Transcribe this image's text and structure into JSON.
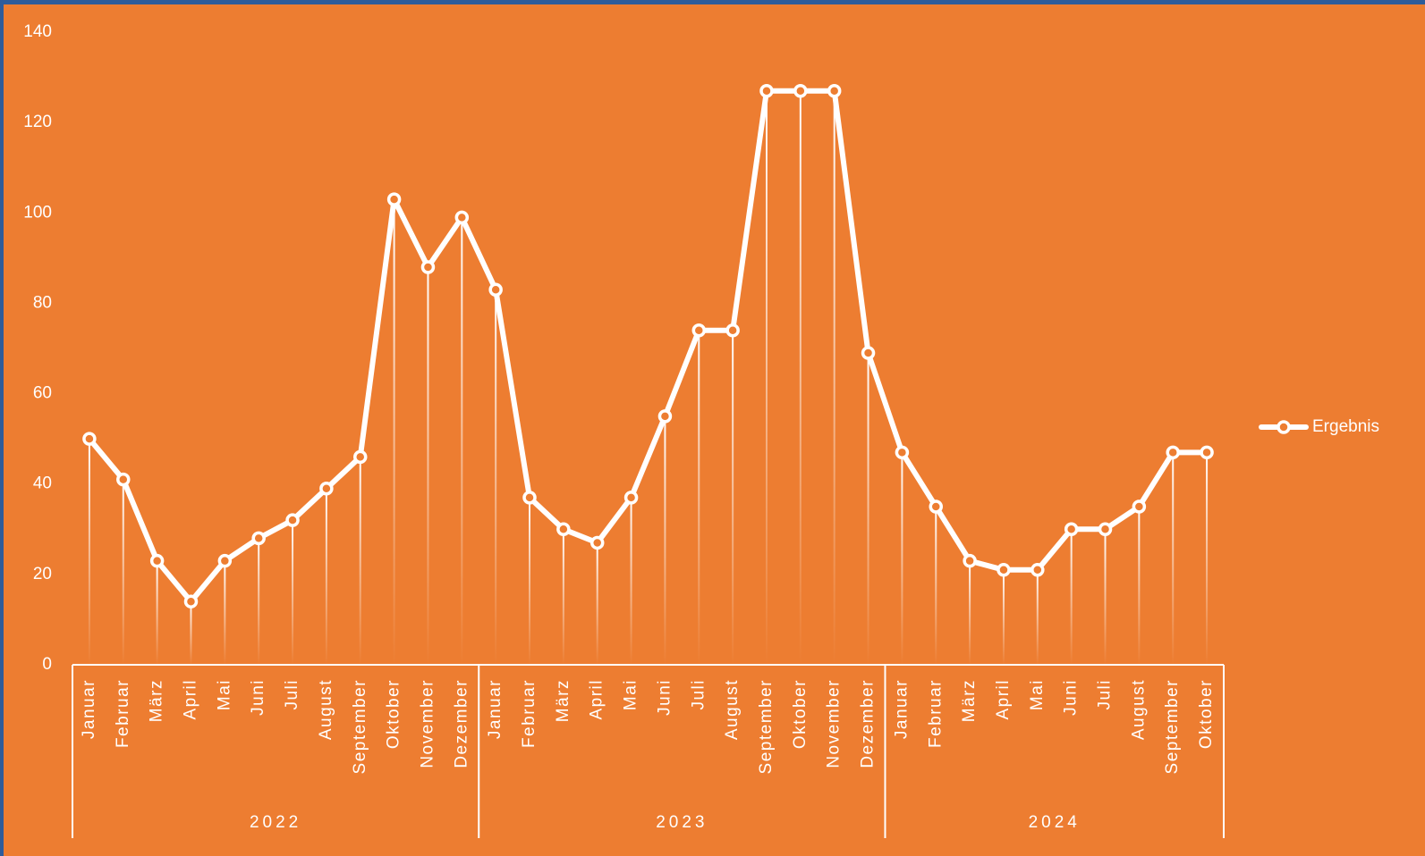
{
  "chart_data": {
    "type": "line",
    "groups": [
      {
        "name": "2022",
        "categories": [
          "Januar",
          "Februar",
          "März",
          "April",
          "Mai",
          "Juni",
          "Juli",
          "August",
          "September",
          "Oktober",
          "November",
          "Dezember"
        ]
      },
      {
        "name": "2023",
        "categories": [
          "Januar",
          "Februar",
          "März",
          "April",
          "Mai",
          "Juni",
          "Juli",
          "August",
          "September",
          "Oktober",
          "November",
          "Dezember"
        ]
      },
      {
        "name": "2024",
        "categories": [
          "Januar",
          "Februar",
          "März",
          "April",
          "Mai",
          "Juni",
          "Juli",
          "August",
          "September",
          "Oktober"
        ]
      }
    ],
    "series": [
      {
        "name": "Ergebnis",
        "color": "#ffffff",
        "values": [
          50,
          41,
          23,
          14,
          23,
          28,
          32,
          39,
          46,
          103,
          88,
          99,
          83,
          37,
          30,
          27,
          37,
          55,
          74,
          74,
          127,
          127,
          127,
          69,
          47,
          35,
          23,
          21,
          21,
          30,
          30,
          35,
          47,
          47
        ]
      }
    ],
    "ylim": [
      0,
      140
    ],
    "yticks": [
      0,
      20,
      40,
      60,
      80,
      100,
      120,
      140
    ],
    "grid": false,
    "legend": "right"
  }
}
